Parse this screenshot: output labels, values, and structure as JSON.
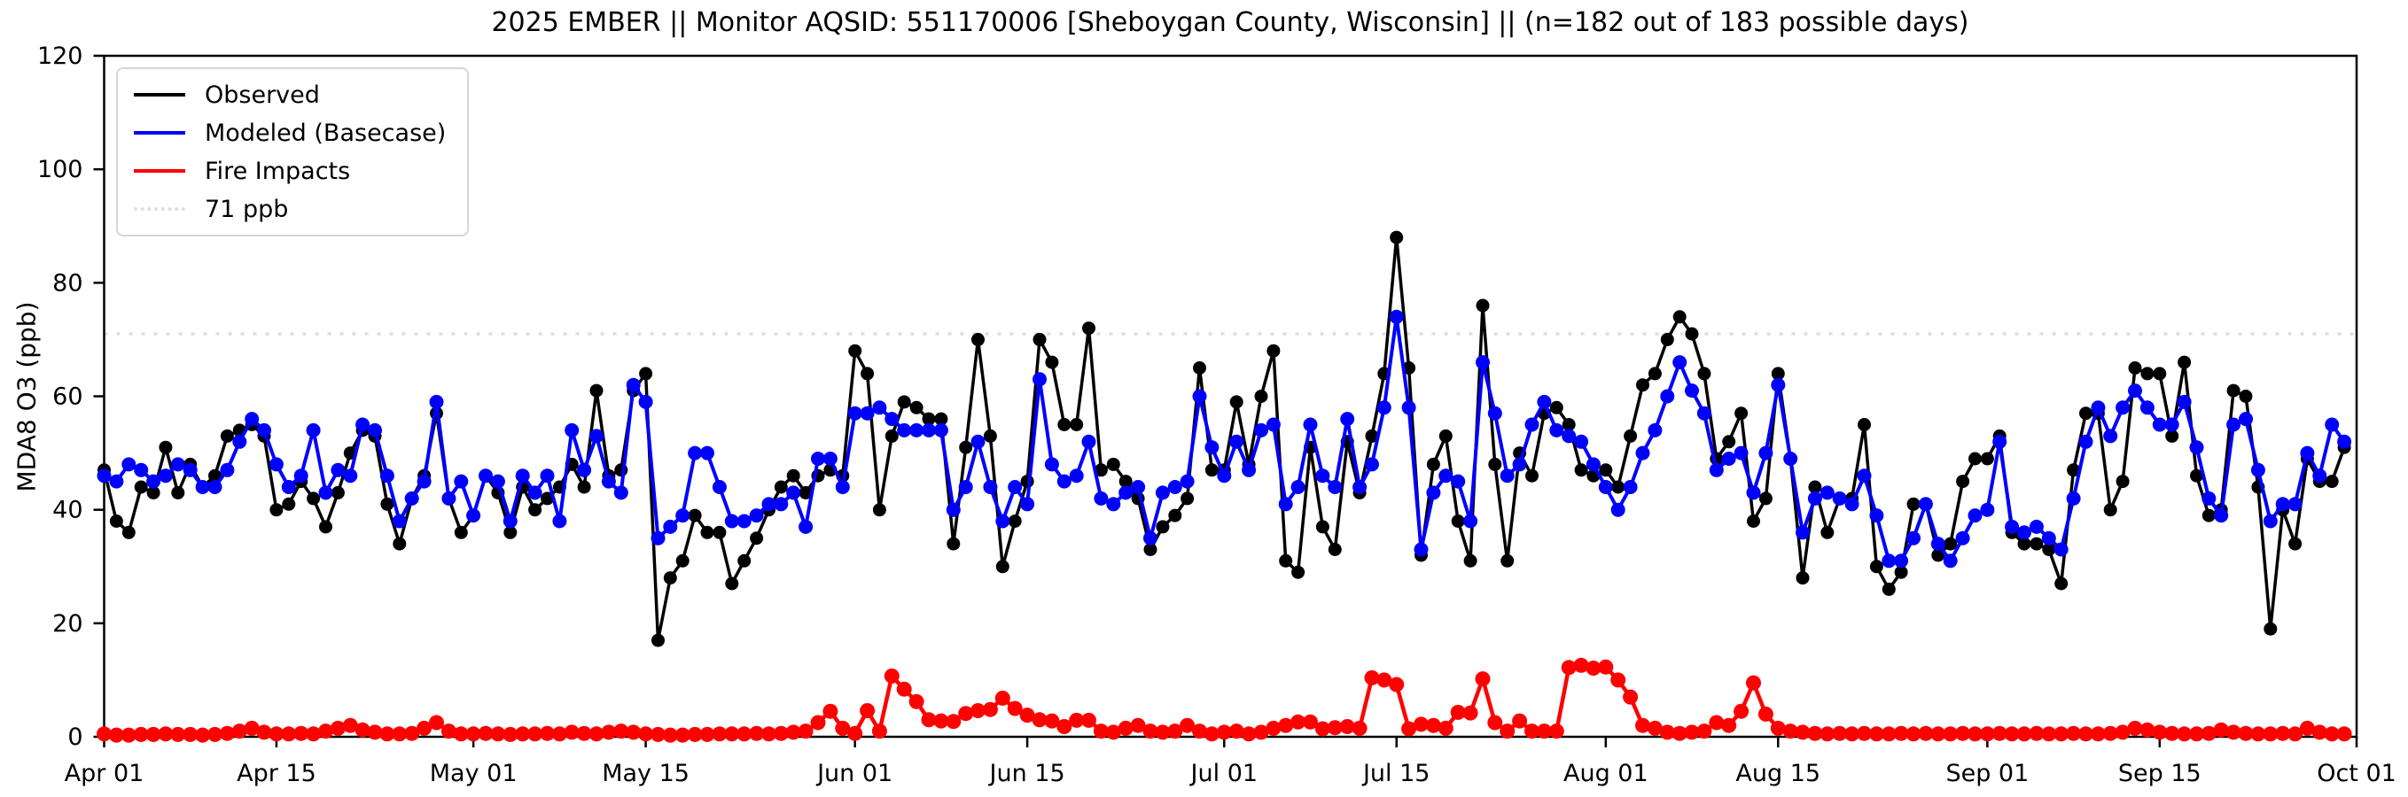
{
  "figure": {
    "title": "2025 EMBER || Monitor AQSID: 551170006 [Sheboygan County, Wisconsin] || (n=182 out of 183 possible days)",
    "ylabel": "MDA8 O3 (ppb)"
  },
  "legend": {
    "items": [
      {
        "label": "Observed",
        "color": "#000000",
        "style": "solid"
      },
      {
        "label": "Modeled (Basecase)",
        "color": "#0000ff",
        "style": "solid"
      },
      {
        "label": "Fire Impacts",
        "color": "#ff0000",
        "style": "solid"
      },
      {
        "label": "71 ppb",
        "color": "#dedede",
        "style": "dotted"
      }
    ]
  },
  "chart_data": {
    "type": "line",
    "title": "2025 EMBER || Monitor AQSID: 551170006 [Sheboygan County, Wisconsin] || (n=182 out of 183 possible days)",
    "xlabel": "",
    "ylabel": "MDA8 O3 (ppb)",
    "ylim": [
      0,
      120
    ],
    "yticks": [
      0,
      20,
      40,
      60,
      80,
      100,
      120
    ],
    "grid": false,
    "legend_position": "upper left",
    "x_start": "Apr 01",
    "x_end": "Oct 01",
    "n_days": 183,
    "xticks": [
      {
        "label": "Apr 01",
        "day": 0
      },
      {
        "label": "Apr 15",
        "day": 14
      },
      {
        "label": "May 01",
        "day": 30
      },
      {
        "label": "May 15",
        "day": 44
      },
      {
        "label": "Jun 01",
        "day": 61
      },
      {
        "label": "Jun 15",
        "day": 75
      },
      {
        "label": "Jul 01",
        "day": 91
      },
      {
        "label": "Jul 15",
        "day": 105
      },
      {
        "label": "Aug 01",
        "day": 122
      },
      {
        "label": "Aug 15",
        "day": 136
      },
      {
        "label": "Sep 01",
        "day": 153
      },
      {
        "label": "Sep 15",
        "day": 167
      },
      {
        "label": "Oct 01",
        "day": 183
      }
    ],
    "threshold": {
      "label": "71 ppb",
      "value": 71,
      "color": "#dedede",
      "style": "dotted"
    },
    "series": [
      {
        "name": "Observed",
        "color": "#000000",
        "values": [
          47,
          38,
          36,
          44,
          43,
          51,
          43,
          48,
          44,
          46,
          53,
          54,
          55,
          53,
          40,
          41,
          45,
          42,
          37,
          43,
          50,
          54,
          53,
          41,
          34,
          42,
          46,
          57,
          42,
          36,
          39,
          46,
          43,
          36,
          44,
          40,
          42,
          44,
          48,
          44,
          61,
          46,
          47,
          61,
          64,
          17,
          28,
          31,
          39,
          36,
          36,
          27,
          31,
          35,
          40,
          44,
          46,
          43,
          46,
          47,
          46,
          68,
          64,
          40,
          53,
          59,
          58,
          56,
          56,
          34,
          51,
          70,
          53,
          30,
          38,
          45,
          70,
          66,
          55,
          55,
          72,
          47,
          48,
          45,
          42,
          33,
          37,
          39,
          42,
          65,
          47,
          47,
          59,
          48,
          60,
          68,
          31,
          29,
          51,
          37,
          33,
          52,
          43,
          53,
          64,
          88,
          65,
          32,
          48,
          53,
          38,
          31,
          76,
          48,
          31,
          50,
          46,
          57,
          58,
          55,
          47,
          46,
          47,
          44,
          53,
          62,
          64,
          70,
          74,
          71,
          64,
          49,
          52,
          57,
          38,
          42,
          64,
          49,
          28,
          44,
          36,
          42,
          42,
          55,
          30,
          26,
          29,
          41,
          41,
          32,
          34,
          45,
          49,
          49,
          53,
          36,
          34,
          34,
          33,
          27,
          47,
          57,
          57,
          40,
          45,
          65,
          64,
          64,
          53,
          66,
          46,
          39,
          40,
          61,
          60,
          44,
          19,
          40,
          34,
          49,
          45,
          45,
          51
        ]
      },
      {
        "name": "Modeled (Basecase)",
        "color": "#0000ff",
        "values": [
          46,
          45,
          48,
          47,
          45,
          46,
          48,
          47,
          44,
          44,
          47,
          52,
          56,
          54,
          48,
          44,
          46,
          54,
          43,
          47,
          46,
          55,
          54,
          46,
          38,
          42,
          45,
          59,
          42,
          45,
          39,
          46,
          45,
          38,
          46,
          43,
          46,
          38,
          54,
          47,
          53,
          45,
          43,
          62,
          59,
          35,
          37,
          39,
          50,
          50,
          44,
          38,
          38,
          39,
          41,
          41,
          43,
          37,
          49,
          49,
          44,
          57,
          57,
          58,
          56,
          54,
          54,
          54,
          54,
          40,
          44,
          52,
          44,
          38,
          44,
          41,
          63,
          48,
          45,
          46,
          52,
          42,
          41,
          43,
          44,
          35,
          43,
          44,
          45,
          60,
          51,
          46,
          52,
          47,
          54,
          55,
          41,
          44,
          55,
          46,
          44,
          56,
          44,
          48,
          58,
          74,
          58,
          33,
          43,
          46,
          45,
          38,
          66,
          57,
          46,
          48,
          55,
          59,
          54,
          53,
          52,
          48,
          44,
          40,
          44,
          50,
          54,
          60,
          66,
          61,
          57,
          47,
          49,
          50,
          43,
          50,
          62,
          49,
          36,
          42,
          43,
          42,
          41,
          46,
          39,
          31,
          31,
          35,
          41,
          34,
          31,
          35,
          39,
          40,
          52,
          37,
          36,
          37,
          35,
          33,
          42,
          52,
          58,
          53,
          58,
          61,
          58,
          55,
          55,
          59,
          51,
          42,
          39,
          55,
          56,
          47,
          38,
          41,
          41,
          50,
          46,
          55,
          52
        ]
      },
      {
        "name": "Fire Impacts",
        "color": "#ff0000",
        "values": [
          0.5,
          0.3,
          0.3,
          0.4,
          0.4,
          0.5,
          0.4,
          0.4,
          0.3,
          0.4,
          0.6,
          1.0,
          1.5,
          0.8,
          0.5,
          0.5,
          0.6,
          0.5,
          1.0,
          1.5,
          2.0,
          1.2,
          0.8,
          0.5,
          0.5,
          0.6,
          1.5,
          2.5,
          1.0,
          0.5,
          0.5,
          0.6,
          0.5,
          0.4,
          0.5,
          0.5,
          0.6,
          0.5,
          0.8,
          0.6,
          0.5,
          0.8,
          1.0,
          0.8,
          0.5,
          0.4,
          0.3,
          0.3,
          0.4,
          0.4,
          0.5,
          0.5,
          0.5,
          0.6,
          0.5,
          0.6,
          0.8,
          1.0,
          2.5,
          4.5,
          1.5,
          0.6,
          4.6,
          1.0,
          10.7,
          8.4,
          6.2,
          3.0,
          2.8,
          2.7,
          4.1,
          4.6,
          4.8,
          6.8,
          5.0,
          3.8,
          3.0,
          2.8,
          1.8,
          2.9,
          2.9,
          1.0,
          0.8,
          1.5,
          2.0,
          1.0,
          0.8,
          1.0,
          2.0,
          1.0,
          0.5,
          0.8,
          1.0,
          0.5,
          0.8,
          1.5,
          2.0,
          2.6,
          2.6,
          1.4,
          1.6,
          1.8,
          1.5,
          10.4,
          10.0,
          9.2,
          1.4,
          2.2,
          2.0,
          1.5,
          4.3,
          4.2,
          10.2,
          2.5,
          1.0,
          2.8,
          1.0,
          1.0,
          1.0,
          12.2,
          12.6,
          12.1,
          12.3,
          10.0,
          7.0,
          2.0,
          1.5,
          0.8,
          0.6,
          0.8,
          1.0,
          2.5,
          2.0,
          4.5,
          9.5,
          4.0,
          1.5,
          1.0,
          0.8,
          0.6,
          0.5,
          0.6,
          0.5,
          0.6,
          0.5,
          0.5,
          0.6,
          0.5,
          0.6,
          0.5,
          0.5,
          0.6,
          0.5,
          0.5,
          0.6,
          0.5,
          0.5,
          0.6,
          0.5,
          0.5,
          0.6,
          0.5,
          0.5,
          0.6,
          0.8,
          1.5,
          1.2,
          0.8,
          0.6,
          0.5,
          0.5,
          0.6,
          1.2,
          0.8,
          0.6,
          0.5,
          0.5,
          0.6,
          0.5,
          1.5,
          0.8,
          0.5,
          0.5
        ]
      }
    ]
  }
}
